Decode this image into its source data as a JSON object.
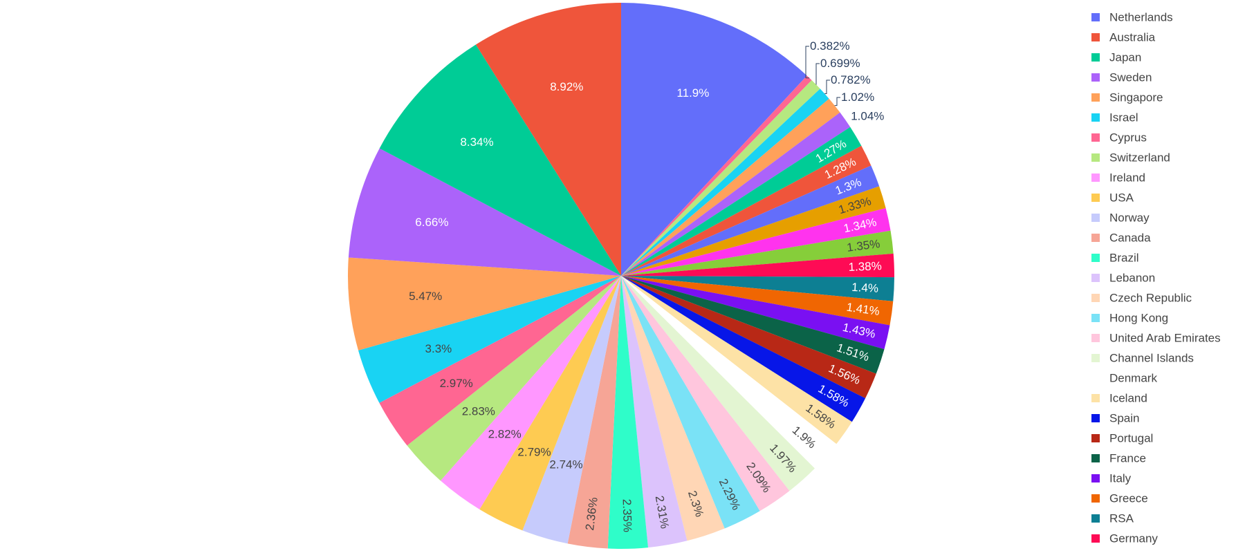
{
  "chart_data": {
    "type": "pie",
    "direction": "clockwise",
    "start": "12 o'clock",
    "label_format": "percent",
    "legend_position": "right",
    "title": "",
    "slices": [
      {
        "label": "Netherlands",
        "percent": "11.9%",
        "value": 11.9,
        "color": "#636efa"
      },
      {
        "label": "Cyprus",
        "percent": "0.382%",
        "value": 0.382,
        "color": "#ff6692"
      },
      {
        "label": "Switzerland",
        "percent": "0.699%",
        "value": 0.699,
        "color": "#b6e880"
      },
      {
        "label": "Israel",
        "percent": "0.782%",
        "value": 0.782,
        "color": "#19d3f3"
      },
      {
        "label": "Singapore",
        "percent": "1.02%",
        "value": 1.02,
        "color": "#ffa15a"
      },
      {
        "label": "Sweden",
        "percent": "1.04%",
        "value": 1.04,
        "color": "#ab63fa"
      },
      {
        "label": "Japan",
        "percent": "1.27%",
        "value": 1.27,
        "color": "#00cc96"
      },
      {
        "label": "Australia",
        "percent": "1.28%",
        "value": 1.28,
        "color": "#ef553b"
      },
      {
        "label": "Netherlands",
        "percent": "1.3%",
        "value": 1.3,
        "color": "#636efa"
      },
      {
        "label": "USA",
        "percent": "1.33%",
        "value": 1.33,
        "color": "#e69f00"
      },
      {
        "label": "Ireland",
        "percent": "1.34%",
        "value": 1.34,
        "color": "#ff33ee"
      },
      {
        "label": "Switzerland",
        "percent": "1.35%",
        "value": 1.35,
        "color": "#86ce3a"
      },
      {
        "label": "Germany",
        "percent": "1.38%",
        "value": 1.38,
        "color": "#fe0b55"
      },
      {
        "label": "RSA",
        "percent": "1.4%",
        "value": 1.4,
        "color": "#0d7f93"
      },
      {
        "label": "Greece",
        "percent": "1.41%",
        "value": 1.41,
        "color": "#f06602"
      },
      {
        "label": "Italy",
        "percent": "1.43%",
        "value": 1.43,
        "color": "#7a10f2"
      },
      {
        "label": "France",
        "percent": "1.51%",
        "value": 1.51,
        "color": "#0b6348"
      },
      {
        "label": "Portugal",
        "percent": "1.56%",
        "value": 1.56,
        "color": "#b82816"
      },
      {
        "label": "Spain",
        "percent": "1.58%",
        "value": 1.58,
        "color": "#0716e8"
      },
      {
        "label": "Iceland",
        "percent": "1.58%",
        "value": 1.58,
        "color": "#fde2a6"
      },
      {
        "label": "Denmark",
        "percent": "1.9%",
        "value": 1.9,
        "color": "#ffffff"
      },
      {
        "label": "Channel Islands",
        "percent": "1.97%",
        "value": 1.97,
        "color": "#e3f5d2"
      },
      {
        "label": "United Arab Emirates",
        "percent": "2.09%",
        "value": 2.09,
        "color": "#ffc6dd"
      },
      {
        "label": "Hong Kong",
        "percent": "2.29%",
        "value": 2.29,
        "color": "#7ae2f6"
      },
      {
        "label": "Czech Republic",
        "percent": "2.3%",
        "value": 2.3,
        "color": "#ffd6b5"
      },
      {
        "label": "Lebanon",
        "percent": "2.31%",
        "value": 2.31,
        "color": "#dcc3fc"
      },
      {
        "label": "Brazil",
        "percent": "2.35%",
        "value": 2.35,
        "color": "#2ffdc9"
      },
      {
        "label": "Canada",
        "percent": "2.36%",
        "value": 2.36,
        "color": "#f6a596"
      },
      {
        "label": "Norway",
        "percent": "2.74%",
        "value": 2.74,
        "color": "#c6cbfc"
      },
      {
        "label": "USA",
        "percent": "2.79%",
        "value": 2.79,
        "color": "#fecb52"
      },
      {
        "label": "Ireland",
        "percent": "2.82%",
        "value": 2.82,
        "color": "#ff97ff"
      },
      {
        "label": "Switzerland",
        "percent": "2.83%",
        "value": 2.83,
        "color": "#b6e880"
      },
      {
        "label": "Cyprus",
        "percent": "2.97%",
        "value": 2.97,
        "color": "#ff6692"
      },
      {
        "label": "Israel",
        "percent": "3.3%",
        "value": 3.3,
        "color": "#19d3f3"
      },
      {
        "label": "Singapore",
        "percent": "5.47%",
        "value": 5.47,
        "color": "#ffa15a"
      },
      {
        "label": "Sweden",
        "percent": "6.66%",
        "value": 6.66,
        "color": "#ab63fa"
      },
      {
        "label": "Japan",
        "percent": "8.34%",
        "value": 8.34,
        "color": "#00cc96"
      },
      {
        "label": "Australia",
        "percent": "8.92%",
        "value": 8.92,
        "color": "#ef553b"
      }
    ],
    "legend": [
      {
        "label": "Netherlands",
        "color": "#636efa"
      },
      {
        "label": "Australia",
        "color": "#ef553b"
      },
      {
        "label": "Japan",
        "color": "#00cc96"
      },
      {
        "label": "Sweden",
        "color": "#ab63fa"
      },
      {
        "label": "Singapore",
        "color": "#ffa15a"
      },
      {
        "label": "Israel",
        "color": "#19d3f3"
      },
      {
        "label": "Cyprus",
        "color": "#ff6692"
      },
      {
        "label": "Switzerland",
        "color": "#b6e880"
      },
      {
        "label": "Ireland",
        "color": "#ff97ff"
      },
      {
        "label": "USA",
        "color": "#fecb52"
      },
      {
        "label": "Norway",
        "color": "#c6cbfc"
      },
      {
        "label": "Canada",
        "color": "#f6a596"
      },
      {
        "label": "Brazil",
        "color": "#2ffdc9"
      },
      {
        "label": "Lebanon",
        "color": "#dcc3fc"
      },
      {
        "label": "Czech Republic",
        "color": "#ffd6b5"
      },
      {
        "label": "Hong Kong",
        "color": "#7ae2f6"
      },
      {
        "label": "United Arab Emirates",
        "color": "#ffc6dd"
      },
      {
        "label": "Channel Islands",
        "color": "#e3f5d2"
      },
      {
        "label": "Denmark",
        "color": "#ffffff"
      },
      {
        "label": "Iceland",
        "color": "#fde2a6"
      },
      {
        "label": "Spain",
        "color": "#0716e8"
      },
      {
        "label": "Portugal",
        "color": "#b82816"
      },
      {
        "label": "France",
        "color": "#0b6348"
      },
      {
        "label": "Italy",
        "color": "#7a10f2"
      },
      {
        "label": "Greece",
        "color": "#f06602"
      },
      {
        "label": "RSA",
        "color": "#0d7f93"
      },
      {
        "label": "Germany",
        "color": "#fe0b55"
      }
    ]
  }
}
